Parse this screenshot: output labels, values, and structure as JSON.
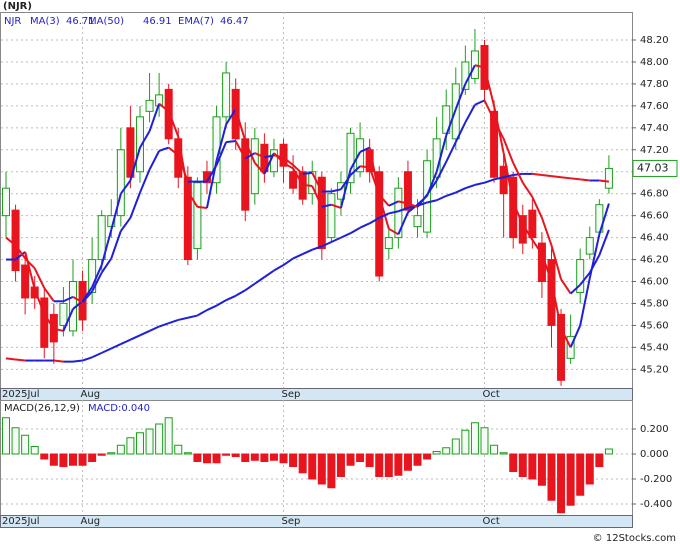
{
  "chart_data": [
    {
      "type": "candlestick",
      "title": "(NJR)",
      "symbol": "NJR",
      "categories": [
        "2025Jul",
        null,
        null,
        null,
        null,
        null,
        null,
        null,
        "Aug",
        null,
        null,
        null,
        null,
        null,
        null,
        null,
        null,
        null,
        null,
        null,
        null,
        null,
        null,
        null,
        null,
        null,
        null,
        null,
        null,
        "Sep",
        null,
        null,
        null,
        null,
        null,
        null,
        null,
        null,
        null,
        null,
        null,
        null,
        null,
        null,
        null,
        null,
        null,
        null,
        null,
        null,
        "Oct",
        null,
        null,
        null,
        null,
        null,
        null,
        null,
        null,
        null,
        null,
        null,
        null,
        null
      ],
      "open": [
        46.6,
        46.65,
        46.15,
        45.95,
        45.85,
        45.7,
        45.6,
        45.55,
        46.0,
        45.9,
        46.2,
        46.5,
        46.6,
        47.4,
        47.0,
        47.55,
        47.6,
        47.75,
        47.3,
        46.95,
        46.3,
        47.0,
        46.9,
        47.5,
        47.75,
        47.3,
        46.8,
        47.25,
        47.0,
        47.25,
        47.0,
        47.0,
        46.8,
        46.95,
        46.4,
        46.75,
        46.9,
        47.0,
        47.2,
        47.0,
        46.3,
        46.4,
        47.0,
        46.5,
        46.45,
        46.95,
        47.35,
        47.3,
        47.75,
        47.85,
        48.15,
        47.55,
        47.05,
        46.95,
        46.6,
        46.65,
        46.35,
        46.2,
        45.7,
        45.3,
        45.9,
        46.25,
        46.45,
        46.85
      ],
      "high": [
        47.0,
        46.7,
        46.25,
        46.05,
        45.95,
        45.8,
        45.95,
        46.2,
        46.1,
        46.4,
        46.65,
        46.75,
        47.4,
        47.6,
        47.6,
        47.9,
        47.9,
        47.8,
        47.4,
        47.05,
        46.95,
        47.1,
        47.6,
        48.0,
        47.85,
        47.45,
        47.4,
        47.35,
        47.3,
        47.3,
        47.15,
        47.05,
        47.1,
        47.0,
        46.85,
        47.0,
        47.4,
        47.45,
        47.3,
        47.05,
        46.5,
        46.95,
        47.1,
        46.75,
        47.2,
        47.5,
        47.75,
        47.95,
        48.15,
        48.3,
        48.2,
        47.65,
        47.15,
        47.0,
        46.7,
        46.75,
        46.45,
        46.3,
        45.75,
        45.7,
        46.3,
        46.5,
        46.75,
        47.15
      ],
      "low": [
        46.4,
        46.0,
        45.7,
        45.75,
        45.3,
        45.25,
        45.5,
        45.5,
        45.55,
        45.8,
        46.1,
        46.4,
        46.5,
        46.85,
        46.9,
        47.45,
        47.5,
        47.25,
        46.85,
        46.15,
        46.2,
        46.8,
        46.8,
        47.4,
        47.2,
        46.55,
        46.7,
        46.9,
        46.95,
        46.9,
        46.8,
        46.7,
        46.7,
        46.2,
        46.35,
        46.6,
        46.8,
        46.95,
        46.9,
        46.0,
        46.2,
        46.3,
        46.6,
        46.4,
        46.4,
        46.85,
        47.2,
        47.2,
        47.7,
        47.8,
        47.65,
        46.9,
        46.4,
        46.3,
        46.25,
        46.3,
        45.85,
        45.4,
        45.05,
        45.25,
        45.8,
        46.2,
        46.4,
        46.8
      ],
      "close": [
        46.85,
        46.1,
        45.85,
        45.85,
        45.4,
        45.45,
        45.8,
        46.0,
        45.65,
        46.2,
        46.6,
        46.6,
        47.2,
        46.95,
        47.5,
        47.65,
        47.7,
        47.3,
        46.95,
        46.2,
        46.9,
        46.9,
        47.5,
        47.9,
        47.3,
        46.65,
        47.3,
        47.0,
        47.2,
        47.05,
        46.85,
        46.75,
        47.0,
        46.3,
        46.8,
        46.9,
        47.35,
        47.3,
        47.0,
        46.05,
        46.4,
        46.85,
        46.65,
        46.6,
        47.1,
        47.3,
        47.6,
        47.8,
        48.0,
        48.1,
        47.75,
        46.95,
        46.8,
        46.4,
        46.35,
        46.4,
        46.0,
        45.6,
        45.1,
        45.5,
        46.2,
        46.4,
        46.7,
        47.03
      ],
      "up_color": "#1e9e1e",
      "down_color": "#e8141e",
      "line_up_color": "#1f1fd8",
      "line_down_color": "#e8141e",
      "series": [
        {
          "name": "MA(3)",
          "values": [
            46.2,
            46.2,
            46.27,
            45.93,
            45.7,
            45.57,
            45.55,
            45.75,
            45.82,
            45.95,
            46.15,
            46.47,
            46.8,
            46.92,
            47.22,
            47.37,
            47.62,
            47.55,
            47.32,
            46.82,
            46.68,
            46.67,
            47.1,
            47.43,
            47.57,
            47.28,
            47.08,
            46.98,
            47.17,
            47.08,
            47.03,
            46.88,
            46.87,
            46.68,
            46.7,
            46.67,
            47.02,
            47.18,
            47.22,
            46.78,
            46.48,
            46.43,
            46.63,
            46.7,
            46.78,
            47.0,
            47.33,
            47.57,
            47.8,
            47.97,
            47.95,
            47.6,
            47.17,
            46.72,
            46.52,
            46.38,
            46.25,
            46.0,
            45.57,
            45.4,
            45.6,
            46.03,
            46.43,
            46.71
          ]
        },
        {
          "name": "MA(50)",
          "values": [
            45.3,
            45.29,
            45.28,
            45.28,
            45.28,
            45.28,
            45.27,
            45.27,
            45.28,
            45.31,
            45.35,
            45.39,
            45.43,
            45.47,
            45.51,
            45.55,
            45.59,
            45.62,
            45.65,
            45.67,
            45.69,
            45.74,
            45.78,
            45.83,
            45.87,
            45.92,
            45.98,
            46.04,
            46.1,
            46.15,
            46.21,
            46.25,
            46.29,
            46.32,
            46.36,
            46.4,
            46.44,
            46.49,
            46.53,
            46.58,
            46.62,
            46.64,
            46.67,
            46.69,
            46.72,
            46.74,
            46.78,
            46.81,
            46.85,
            46.88,
            46.9,
            46.93,
            46.95,
            46.97,
            46.98,
            46.98,
            46.97,
            46.96,
            46.95,
            46.94,
            46.93,
            46.92,
            46.92,
            46.91
          ]
        },
        {
          "name": "EMA(7)",
          "values": [
            46.4,
            46.33,
            46.21,
            46.12,
            45.94,
            45.82,
            45.82,
            45.86,
            45.81,
            45.91,
            46.08,
            46.21,
            46.46,
            46.58,
            46.81,
            47.02,
            47.19,
            47.22,
            47.15,
            46.91,
            46.91,
            46.91,
            47.06,
            47.27,
            47.28,
            47.12,
            47.17,
            47.13,
            47.15,
            47.13,
            47.06,
            46.98,
            46.99,
            46.82,
            46.82,
            46.84,
            46.97,
            47.05,
            47.04,
            46.79,
            46.69,
            46.73,
            46.71,
            46.68,
            46.79,
            46.92,
            47.09,
            47.27,
            47.45,
            47.61,
            47.65,
            47.47,
            47.3,
            47.08,
            46.9,
            46.77,
            46.58,
            46.33,
            46.02,
            45.89,
            45.97,
            46.08,
            46.24,
            46.47
          ]
        }
      ],
      "ylim": [
        45.03,
        48.455
      ],
      "yticks": [
        {
          "value": 45.2,
          "label": "45.20"
        },
        {
          "value": 45.4,
          "label": "45.40"
        },
        {
          "value": 45.6,
          "label": "45.60"
        },
        {
          "value": 45.8,
          "label": "45.80"
        },
        {
          "value": 46.0,
          "label": "46.00"
        },
        {
          "value": 46.2,
          "label": "46.20"
        },
        {
          "value": 46.4,
          "label": "46.40"
        },
        {
          "value": 46.6,
          "label": "46.60"
        },
        {
          "value": 46.8,
          "label": "46.80"
        },
        {
          "value": 47.0,
          "label": "47.00"
        },
        {
          "value": 47.2,
          "label": "47.20"
        },
        {
          "value": 47.4,
          "label": "47.40"
        },
        {
          "value": 47.6,
          "label": "47.60"
        },
        {
          "value": 47.8,
          "label": "47.80"
        },
        {
          "value": 48.0,
          "label": "48.00"
        },
        {
          "value": 48.2,
          "label": "48.20"
        }
      ],
      "grid": true
    },
    {
      "type": "bar",
      "title": "MACD(26,12,9)",
      "legend_value": "MACD:0.040",
      "categories": [
        "2025Jul",
        null,
        null,
        null,
        null,
        null,
        null,
        null,
        "Aug",
        null,
        null,
        null,
        null,
        null,
        null,
        null,
        null,
        null,
        null,
        null,
        null,
        null,
        null,
        null,
        null,
        null,
        null,
        null,
        null,
        "Sep",
        null,
        null,
        null,
        null,
        null,
        null,
        null,
        null,
        null,
        null,
        null,
        null,
        null,
        null,
        null,
        null,
        null,
        null,
        null,
        null,
        "Oct",
        null,
        null,
        null,
        null,
        null,
        null,
        null,
        null,
        null,
        null,
        null,
        null,
        null
      ],
      "values": [
        0.29,
        0.21,
        0.15,
        0.06,
        -0.04,
        -0.09,
        -0.1,
        -0.09,
        -0.09,
        -0.06,
        -0.01,
        0.01,
        0.07,
        0.13,
        0.17,
        0.2,
        0.24,
        0.29,
        0.07,
        0.01,
        -0.06,
        -0.07,
        -0.07,
        -0.01,
        -0.02,
        -0.06,
        -0.05,
        -0.06,
        -0.05,
        -0.07,
        -0.1,
        -0.15,
        -0.2,
        -0.24,
        -0.27,
        -0.18,
        -0.09,
        -0.06,
        -0.1,
        -0.18,
        -0.18,
        -0.17,
        -0.13,
        -0.09,
        -0.04,
        0.02,
        0.05,
        0.12,
        0.19,
        0.25,
        0.21,
        0.07,
        0.01,
        -0.14,
        -0.18,
        -0.2,
        -0.25,
        -0.37,
        -0.47,
        -0.41,
        -0.33,
        -0.24,
        -0.1,
        0.04
      ],
      "pos_color": "#1e9e1e",
      "neg_color": "#e8141e",
      "ylim": [
        -0.488,
        0.432
      ],
      "yticks": [
        {
          "value": -0.4,
          "label": "-0.400"
        },
        {
          "value": -0.2,
          "label": "-0.200"
        },
        {
          "value": 0,
          "label": "0.000"
        },
        {
          "value": 0.2,
          "label": "0.200"
        }
      ],
      "grid": true
    }
  ],
  "footer": "© 12Stocks.com"
}
